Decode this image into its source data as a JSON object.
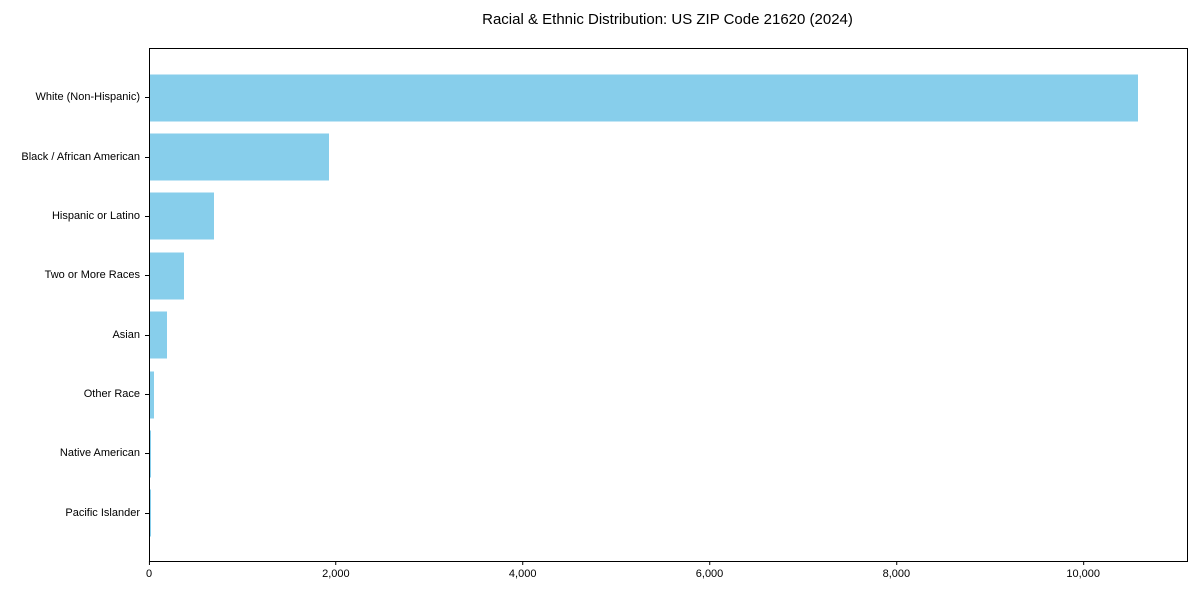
{
  "chart_data": {
    "type": "bar",
    "orientation": "horizontal",
    "title": "Racial & Ethnic Distribution: US ZIP Code 21620 (2024)",
    "categories": [
      "White (Non-Hispanic)",
      "Black / African American",
      "Hispanic or Latino",
      "Two or More Races",
      "Asian",
      "Other Race",
      "Native American",
      "Pacific Islander"
    ],
    "values": [
      10580,
      1915,
      685,
      360,
      185,
      45,
      6,
      2
    ],
    "xlabel": "",
    "ylabel": "",
    "xlim": [
      0,
      11100
    ],
    "x_ticks": [
      0,
      2000,
      4000,
      6000,
      8000,
      10000
    ],
    "x_tick_labels": [
      "0",
      "2,000",
      "4,000",
      "6,000",
      "8,000",
      "10,000"
    ],
    "bar_color": "#87CEEB",
    "axis_color": "#000000",
    "background_color": "#ffffff",
    "grid": false,
    "legend": null
  }
}
